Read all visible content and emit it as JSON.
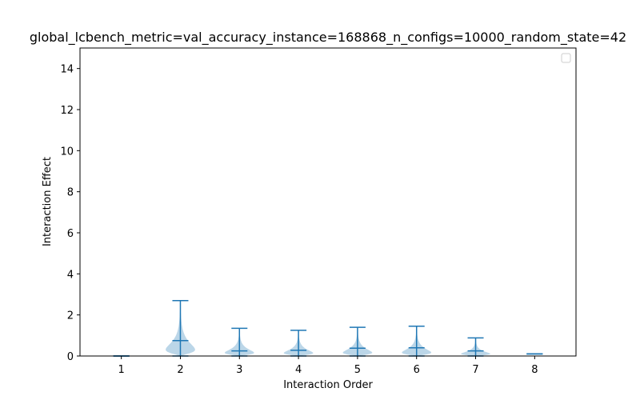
{
  "chart_data": {
    "type": "violin",
    "title": "global_lcbench_metric=val_accuracy_instance=168868_n_configs=10000_random_state=42",
    "xlabel": "Interaction Order",
    "ylabel": "Interaction Effect",
    "categories": [
      "1",
      "2",
      "3",
      "4",
      "5",
      "6",
      "7",
      "8"
    ],
    "x_ticks": [
      "1",
      "2",
      "3",
      "4",
      "5",
      "6",
      "7",
      "8"
    ],
    "y_ticks": [
      "0",
      "2",
      "4",
      "6",
      "8",
      "10",
      "12",
      "14"
    ],
    "ylim": [
      0,
      15
    ],
    "legend": "upper right (empty)",
    "colors": {
      "body": "#1f77b4",
      "body_alpha": 0.3,
      "lines": "#1f77b4"
    },
    "violins": [
      {
        "order": 1,
        "min": 0.0,
        "mean": 0.0,
        "max": 0.0,
        "width": 0.0
      },
      {
        "order": 2,
        "min": 0.0,
        "mean": 0.75,
        "max": 2.7,
        "width": 0.5
      },
      {
        "order": 3,
        "min": 0.0,
        "mean": 0.25,
        "max": 1.35,
        "width": 0.5
      },
      {
        "order": 4,
        "min": 0.0,
        "mean": 0.28,
        "max": 1.25,
        "width": 0.5
      },
      {
        "order": 5,
        "min": 0.0,
        "mean": 0.38,
        "max": 1.4,
        "width": 0.5
      },
      {
        "order": 6,
        "min": 0.0,
        "mean": 0.4,
        "max": 1.45,
        "width": 0.5
      },
      {
        "order": 7,
        "min": 0.0,
        "mean": 0.25,
        "max": 0.88,
        "width": 0.5
      },
      {
        "order": 8,
        "min": 0.1,
        "mean": 0.1,
        "max": 0.1,
        "width": 0.0
      }
    ]
  }
}
